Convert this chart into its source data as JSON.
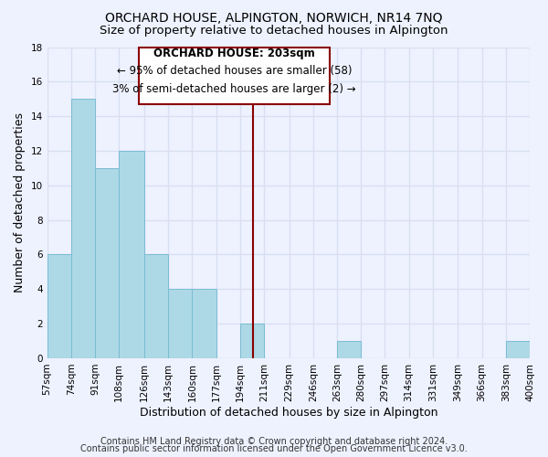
{
  "title": "ORCHARD HOUSE, ALPINGTON, NORWICH, NR14 7NQ",
  "subtitle": "Size of property relative to detached houses in Alpington",
  "xlabel": "Distribution of detached houses by size in Alpington",
  "ylabel": "Number of detached properties",
  "bin_edges": [
    57,
    74,
    91,
    108,
    126,
    143,
    160,
    177,
    194,
    211,
    229,
    246,
    263,
    280,
    297,
    314,
    331,
    349,
    366,
    383,
    400
  ],
  "bin_heights": [
    6,
    15,
    11,
    12,
    6,
    4,
    4,
    0,
    2,
    0,
    0,
    0,
    1,
    0,
    0,
    0,
    0,
    0,
    0,
    1
  ],
  "bar_color": "#add8e6",
  "bar_edge_color": "#7abcd4",
  "background_color": "#eef2ff",
  "grid_color": "#d8dff0",
  "vline_x": 203,
  "vline_color": "#8b0000",
  "ylim": [
    0,
    18
  ],
  "yticks": [
    0,
    2,
    4,
    6,
    8,
    10,
    12,
    14,
    16,
    18
  ],
  "annotation_title": "ORCHARD HOUSE: 203sqm",
  "annotation_line1": "← 95% of detached houses are smaller (58)",
  "annotation_line2": "3% of semi-detached houses are larger (2) →",
  "annotation_box_color": "#ffffff",
  "annotation_box_edge": "#8b0000",
  "footer_line1": "Contains HM Land Registry data © Crown copyright and database right 2024.",
  "footer_line2": "Contains public sector information licensed under the Open Government Licence v3.0.",
  "title_fontsize": 10,
  "subtitle_fontsize": 9.5,
  "tick_label_fontsize": 7.5,
  "xlabel_fontsize": 9,
  "ylabel_fontsize": 9,
  "annotation_fontsize_title": 8.5,
  "annotation_fontsize_body": 8.5,
  "footer_fontsize": 7
}
